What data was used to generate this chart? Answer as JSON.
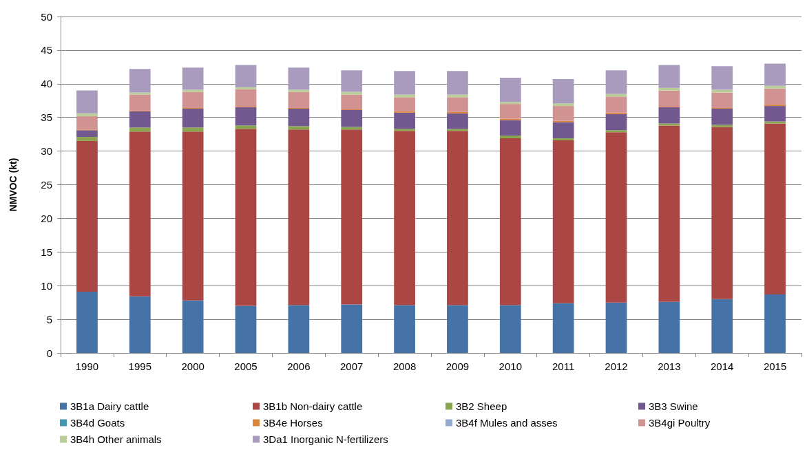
{
  "chart_data": {
    "type": "bar",
    "stacked": true,
    "ylabel": "NMVOC (kt)",
    "ylim": [
      0,
      50
    ],
    "yticks": [
      0,
      5,
      10,
      15,
      20,
      25,
      30,
      35,
      40,
      45,
      50
    ],
    "grid": "y",
    "legend": "bottom",
    "categories": [
      "1990",
      "1995",
      "2000",
      "2005",
      "2006",
      "2007",
      "2008",
      "2009",
      "2010",
      "2011",
      "2012",
      "2013",
      "2014",
      "2015"
    ],
    "series": [
      {
        "name": "3B1a Dairy cattle",
        "color": "#4572a7",
        "values": [
          9.1,
          8.4,
          7.8,
          7.0,
          7.1,
          7.2,
          7.1,
          7.1,
          7.1,
          7.4,
          7.5,
          7.6,
          8.0,
          8.7
        ]
      },
      {
        "name": "3B1b Non-dairy cattle",
        "color": "#aa4643",
        "values": [
          22.4,
          24.5,
          25.1,
          26.3,
          26.1,
          26.0,
          25.9,
          25.9,
          24.8,
          24.2,
          25.3,
          26.2,
          25.6,
          25.4
        ]
      },
      {
        "name": "3B2 Sheep",
        "color": "#89a54e",
        "values": [
          0.6,
          0.6,
          0.6,
          0.5,
          0.5,
          0.4,
          0.3,
          0.3,
          0.4,
          0.3,
          0.3,
          0.3,
          0.3,
          0.3
        ]
      },
      {
        "name": "3B3 Swine",
        "color": "#71588f",
        "values": [
          1.0,
          2.4,
          2.8,
          2.7,
          2.6,
          2.5,
          2.4,
          2.3,
          2.3,
          2.4,
          2.4,
          2.4,
          2.4,
          2.3
        ]
      },
      {
        "name": "3B4d Goats",
        "color": "#4198af",
        "values": [
          0,
          0,
          0,
          0,
          0,
          0,
          0,
          0,
          0,
          0,
          0,
          0,
          0,
          0
        ]
      },
      {
        "name": "3B4e Horses",
        "color": "#db843d",
        "values": [
          0.1,
          0.1,
          0.1,
          0.1,
          0.1,
          0.1,
          0.2,
          0.2,
          0.2,
          0.2,
          0.2,
          0.1,
          0.1,
          0.2
        ]
      },
      {
        "name": "3B4f Mules and asses",
        "color": "#93a9cf",
        "values": [
          0,
          0,
          0,
          0,
          0,
          0,
          0,
          0,
          0,
          0,
          0,
          0,
          0,
          0
        ]
      },
      {
        "name": "3B4gi Poultry",
        "color": "#d19392",
        "values": [
          2.0,
          2.4,
          2.4,
          2.6,
          2.4,
          2.2,
          2.1,
          2.2,
          2.2,
          2.2,
          2.4,
          2.4,
          2.3,
          2.4
        ]
      },
      {
        "name": "3B4h Other animals",
        "color": "#b9cd96",
        "values": [
          0.4,
          0.3,
          0.3,
          0.3,
          0.3,
          0.4,
          0.4,
          0.4,
          0.3,
          0.4,
          0.4,
          0.4,
          0.4,
          0.4
        ]
      },
      {
        "name": "3Da1 Inorganic N-fertilizers",
        "color": "#a99bbd",
        "values": [
          3.4,
          3.5,
          3.3,
          3.3,
          3.3,
          3.2,
          3.5,
          3.5,
          3.6,
          3.6,
          3.5,
          3.4,
          3.5,
          3.3
        ]
      }
    ]
  }
}
